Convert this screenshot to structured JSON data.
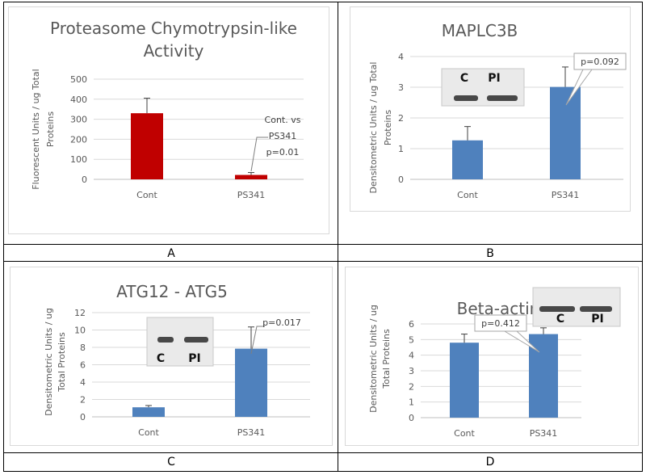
{
  "panel_labels": [
    "A",
    "B",
    "C",
    "D"
  ],
  "colors": {
    "panel_a_bar": "#c00000",
    "bar": "#4f81bd",
    "error": "#404040"
  },
  "chart_data": [
    {
      "type": "bar",
      "title_lines": [
        "Proteasome Chymotrypsin-like",
        "Activity"
      ],
      "ylabel_lines": [
        "Fluorescent Units / ug Total",
        "Proteins"
      ],
      "categories": [
        "Cont",
        "PS341"
      ],
      "values": [
        330,
        22
      ],
      "errors": [
        75,
        12
      ],
      "ylim": [
        0,
        500
      ],
      "yticks": [
        "0",
        "100",
        "200",
        "300",
        "400",
        "500"
      ],
      "grid": true,
      "annotation_lines": [
        "Cont. vs",
        "PS341",
        "p=0.01"
      ]
    },
    {
      "type": "bar",
      "title_lines": [
        "MAPLC3B"
      ],
      "ylabel_lines": [
        "Densitometric Units / ug Total",
        "Proteins"
      ],
      "categories": [
        "Cont",
        "PS341"
      ],
      "values": [
        1.27,
        3.01
      ],
      "errors": [
        0.45,
        0.65
      ],
      "ylim": [
        0,
        4
      ],
      "yticks": [
        "0",
        "1",
        "2",
        "3",
        "4"
      ],
      "grid": true,
      "annotation_lines": [
        "p=0.092"
      ],
      "blot_labels": [
        "C",
        "PI"
      ]
    },
    {
      "type": "bar",
      "title_lines": [
        "ATG12 - ATG5"
      ],
      "ylabel_lines": [
        "Densitometric Units / ug",
        "Total Proteins"
      ],
      "categories": [
        "Cont",
        "PS341"
      ],
      "values": [
        1.1,
        7.85
      ],
      "errors": [
        0.2,
        2.5
      ],
      "ylim": [
        0,
        12
      ],
      "yticks": [
        "0",
        "2",
        "4",
        "6",
        "8",
        "10",
        "12"
      ],
      "grid": true,
      "annotation_lines": [
        "p=0.017"
      ],
      "blot_labels": [
        "C",
        "PI"
      ]
    },
    {
      "type": "bar",
      "title_lines": [
        "Beta-actin"
      ],
      "ylabel_lines": [
        "Densitometric Units / ug",
        "Total Proteins"
      ],
      "categories": [
        "Cont",
        "PS341"
      ],
      "values": [
        4.8,
        5.35
      ],
      "errors": [
        0.55,
        0.4
      ],
      "ylim": [
        0,
        6
      ],
      "yticks": [
        "0",
        "1",
        "2",
        "3",
        "4",
        "5",
        "6"
      ],
      "grid": true,
      "annotation_lines": [
        "p=0.412"
      ],
      "blot_labels": [
        "C",
        "PI"
      ]
    }
  ]
}
